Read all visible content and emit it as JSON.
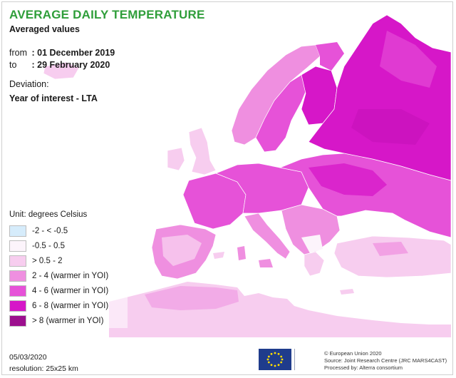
{
  "header": {
    "title": "AVERAGE DAILY TEMPERATURE",
    "subtitle": "Averaged values"
  },
  "period": {
    "from_label": "from",
    "from_value": ": 01 December 2019",
    "to_label": "to",
    "to_value": ": 29 February 2020"
  },
  "deviation": {
    "label": "Deviation:",
    "value": "Year of interest - LTA"
  },
  "legend": {
    "title": "Unit: degrees Celsius",
    "items": [
      {
        "label": "-2 - < -0.5",
        "color": "#d6ecfb"
      },
      {
        "label": "-0.5 - 0.5",
        "color": "#fcf4fb"
      },
      {
        "label": "> 0.5 - 2",
        "color": "#f7cdef"
      },
      {
        "label": "2 - 4 (warmer in YOI)",
        "color": "#ef8fe0"
      },
      {
        "label": "4 - 6 (warmer in YOI)",
        "color": "#e652d8"
      },
      {
        "label": "6 - 8 (warmer in YOI)",
        "color": "#d617c8"
      },
      {
        "label": "> 8 (warmer in YOI)",
        "color": "#9c0f8e"
      }
    ]
  },
  "footer": {
    "date": "05/03/2020",
    "resolution": "resolution:  25x25 km",
    "credits": [
      "© European Union 2020",
      "Source: Joint Research Centre (JRC MARS4CAST)",
      "Processed by: Alterra consortium"
    ]
  },
  "map_colors": {
    "sea": "#ffffff",
    "class_neutral": "#fcf4fb",
    "class_0_5_2": "#f7cdef",
    "class_2_4": "#ef8fe0",
    "class_4_6": "#e652d8",
    "class_6_8": "#d617c8",
    "class_gt8": "#9c0f8e",
    "border": "#b24aa6"
  }
}
